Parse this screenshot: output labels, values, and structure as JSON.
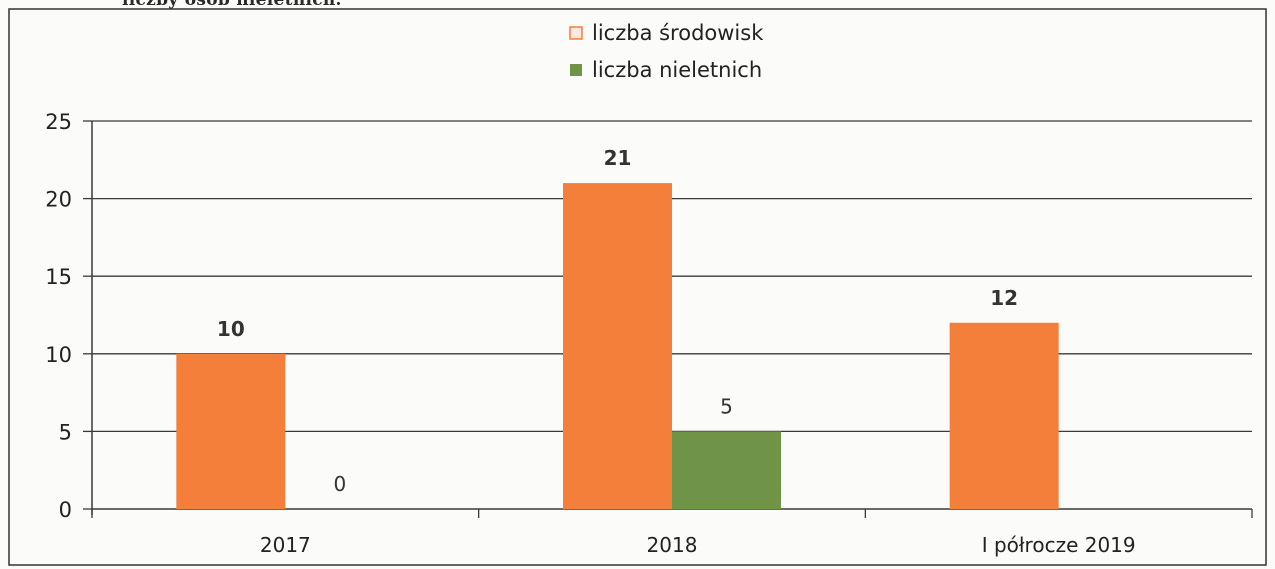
{
  "page": {
    "top_text": "liczby osób nieletnich."
  },
  "chart_data": {
    "type": "bar",
    "title": "",
    "xlabel": "",
    "ylabel": "",
    "categories": [
      "2017",
      "2018",
      "I półrocze 2019"
    ],
    "series": [
      {
        "name": "liczba środowisk",
        "values": [
          10,
          21,
          12
        ],
        "color": "#f47f3b"
      },
      {
        "name": "liczba nieletnich",
        "values": [
          0,
          5,
          null
        ],
        "color": "#6f9447"
      }
    ],
    "data_labels": [
      [
        "10",
        "21",
        "12"
      ],
      [
        "0",
        "5",
        ""
      ]
    ],
    "ylim": [
      0,
      25
    ],
    "yticks": [
      0,
      5,
      10,
      15,
      20,
      25
    ],
    "grid": true,
    "legend": "top-center"
  },
  "colors": {
    "frame": "#333333",
    "grid": "#3a3a3a",
    "text": "#222222",
    "label_text": "#333333"
  }
}
